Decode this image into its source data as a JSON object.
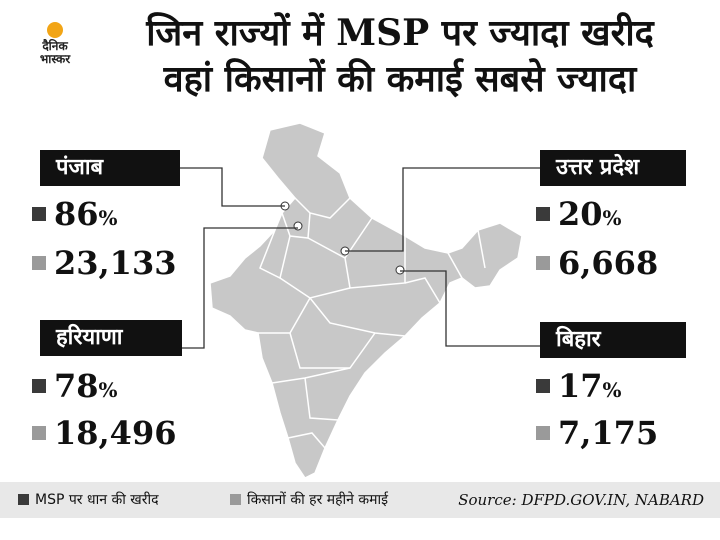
{
  "brand": {
    "line1": "दैनिक",
    "line2": "भास्कर",
    "sun_color": "#f2a516"
  },
  "title": {
    "line1": "जिन राज्यों में MSP पर ज्यादा खरीद",
    "line2": "वहां किसानों की कमाई सबसे ज्यादा"
  },
  "states": [
    {
      "name": "पंजाब",
      "msp_value": "86",
      "income_value": "23,133"
    },
    {
      "name": "हरियाणा",
      "msp_value": "78",
      "income_value": "18,496"
    },
    {
      "name": "उत्तर प्रदेश",
      "msp_value": "20",
      "income_value": "6,668"
    },
    {
      "name": "बिहार",
      "msp_value": "17",
      "income_value": "7,175"
    }
  ],
  "percent_sign": "%",
  "legend": {
    "msp": {
      "label": "MSP पर धान की खरीद",
      "color": "#3a3a3a"
    },
    "income": {
      "label": "किसानों की हर महीने कमाई",
      "color": "#9a9a9a"
    }
  },
  "source": "Source: DFPD.GOV.IN, NABARD",
  "colors": {
    "map_fill": "#c8c8c8",
    "map_border": "#ffffff",
    "leader_line": "#333333",
    "label_bg": "#111111"
  }
}
